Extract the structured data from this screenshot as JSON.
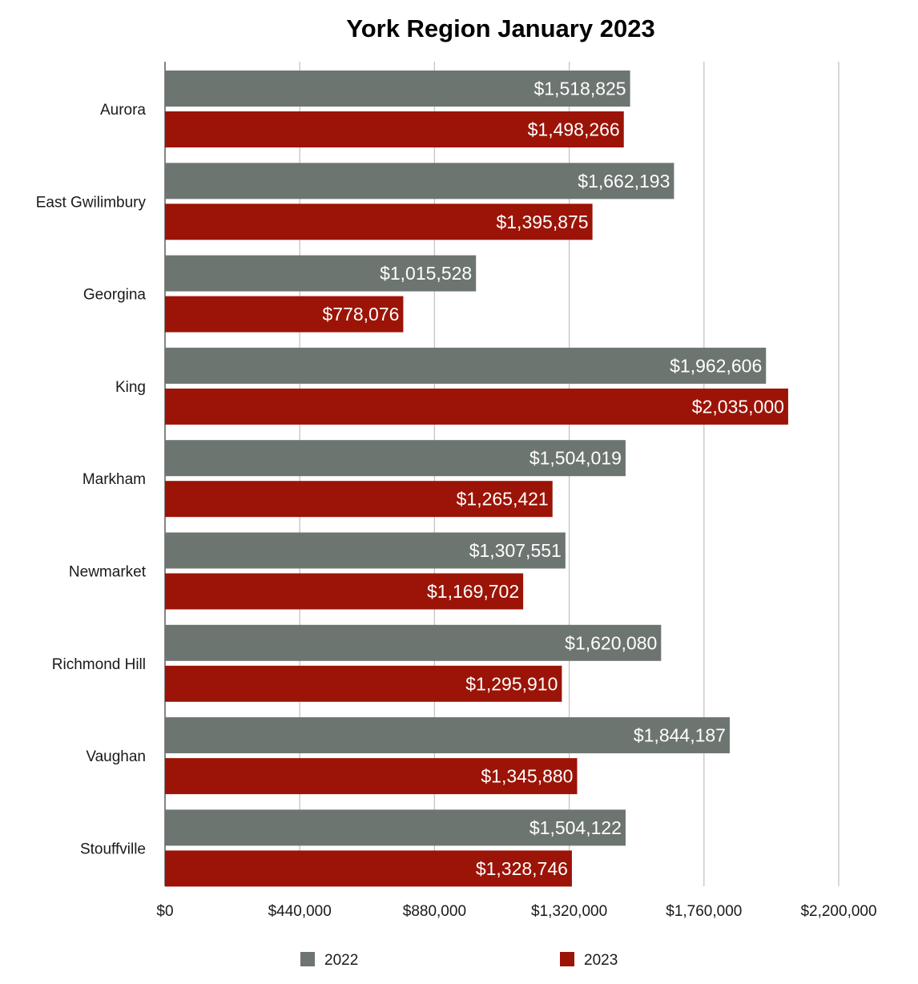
{
  "chart_data": {
    "type": "bar",
    "orientation": "horizontal",
    "title": "York Region January 2023",
    "xlabel": "",
    "ylabel": "",
    "xlim": [
      0,
      2200000
    ],
    "x_ticks": [
      0,
      440000,
      880000,
      1320000,
      1760000,
      2200000
    ],
    "x_tick_labels": [
      "$0",
      "$440,000",
      "$880,000",
      "$1,320,000",
      "$1,760,000",
      "$2,200,000"
    ],
    "grid": true,
    "legend_position": "bottom",
    "categories": [
      "Aurora",
      "East Gwilimbury",
      "Georgina",
      "King",
      "Markham",
      "Newmarket",
      "Richmond Hill",
      "Vaughan",
      "Stouffville"
    ],
    "series": [
      {
        "name": "2022",
        "color": "#6d7571",
        "values": [
          1518825,
          1662193,
          1015528,
          1962606,
          1504019,
          1307551,
          1620080,
          1844187,
          1504122
        ],
        "labels": [
          "$1,518,825",
          "$1,662,193",
          "$1,015,528",
          "$1,962,606",
          "$1,504,019",
          "$1,307,551",
          "$1,620,080",
          "$1,844,187",
          "$1,504,122"
        ]
      },
      {
        "name": "2023",
        "color": "#9b1407",
        "values": [
          1498266,
          1395875,
          778076,
          2035000,
          1265421,
          1169702,
          1295910,
          1345880,
          1328746
        ],
        "labels": [
          "$1,498,266",
          "$1,395,875",
          "$778,076",
          "$2,035,000",
          "$1,265,421",
          "$1,169,702",
          "$1,295,910",
          "$1,345,880",
          "$1,328,746"
        ]
      }
    ]
  }
}
